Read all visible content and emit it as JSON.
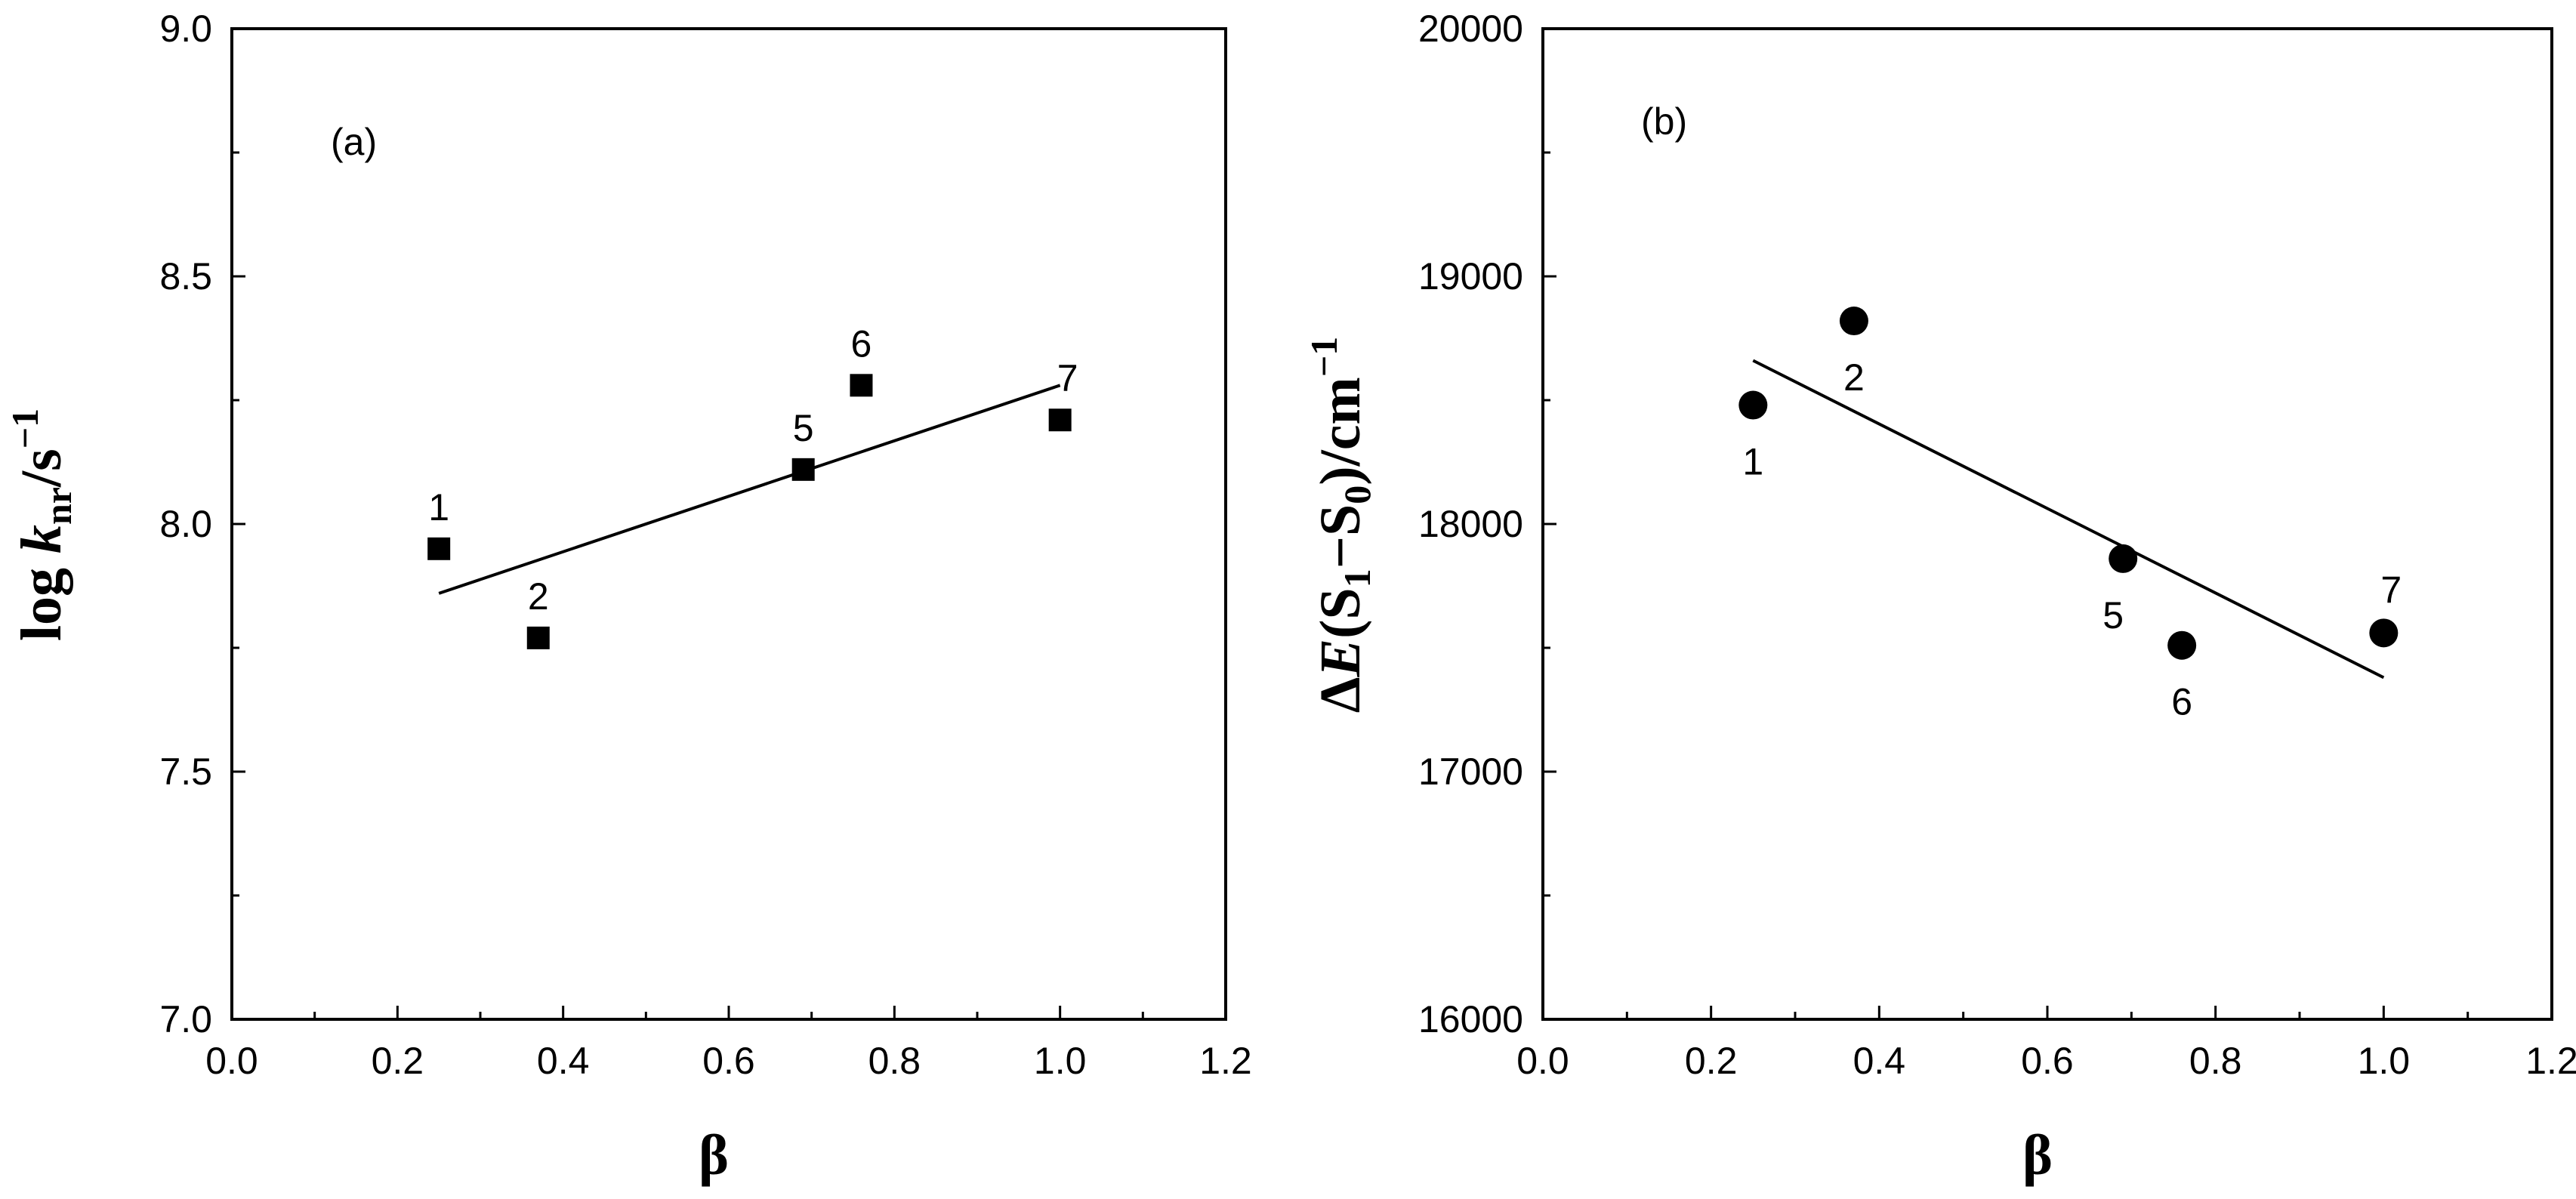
{
  "chart_data": [
    {
      "type": "scatter",
      "panel_label": "(a)",
      "xlabel": "β",
      "ylabel": {
        "prefix": "log ",
        "symbol": "k",
        "subscript": "nr",
        "unit": "/s",
        "superscript": "−1"
      },
      "xlim": [
        0.0,
        1.2
      ],
      "ylim": [
        7.0,
        9.0
      ],
      "x_ticks": [
        "0.0",
        "0.2",
        "0.4",
        "0.6",
        "0.8",
        "1.0",
        "1.2"
      ],
      "y_ticks": [
        "7.0",
        "7.5",
        "8.0",
        "8.5",
        "9.0"
      ],
      "marker": "square",
      "points": [
        {
          "label": "1",
          "x": 0.25,
          "y": 7.95
        },
        {
          "label": "2",
          "x": 0.37,
          "y": 7.77
        },
        {
          "label": "5",
          "x": 0.69,
          "y": 8.11
        },
        {
          "label": "6",
          "x": 0.76,
          "y": 8.28
        },
        {
          "label": "7",
          "x": 1.0,
          "y": 8.21
        }
      ],
      "fit_line": {
        "x": [
          0.25,
          1.0
        ],
        "y": [
          7.86,
          8.28
        ]
      }
    },
    {
      "type": "scatter",
      "panel_label": "(b)",
      "xlabel": "β",
      "ylabel": {
        "prefix": "Δ",
        "symbol": "E",
        "open": "(S",
        "sub1": "1",
        "mid": "−S",
        "sub2": "0",
        "close": ")/cm",
        "superscript": "−1"
      },
      "xlim": [
        0.0,
        1.2
      ],
      "ylim": [
        16000,
        20000
      ],
      "x_ticks": [
        "0.0",
        "0.2",
        "0.4",
        "0.6",
        "0.8",
        "1.0",
        "1.2"
      ],
      "y_ticks": [
        "16000",
        "17000",
        "18000",
        "19000",
        "20000"
      ],
      "marker": "circle",
      "points": [
        {
          "label": "1",
          "x": 0.25,
          "y": 18480
        },
        {
          "label": "2",
          "x": 0.37,
          "y": 18820
        },
        {
          "label": "5",
          "x": 0.69,
          "y": 17860
        },
        {
          "label": "6",
          "x": 0.76,
          "y": 17510
        },
        {
          "label": "7",
          "x": 1.0,
          "y": 17560
        }
      ],
      "fit_line": {
        "x": [
          0.25,
          1.0
        ],
        "y": [
          18660,
          17380
        ]
      }
    }
  ]
}
